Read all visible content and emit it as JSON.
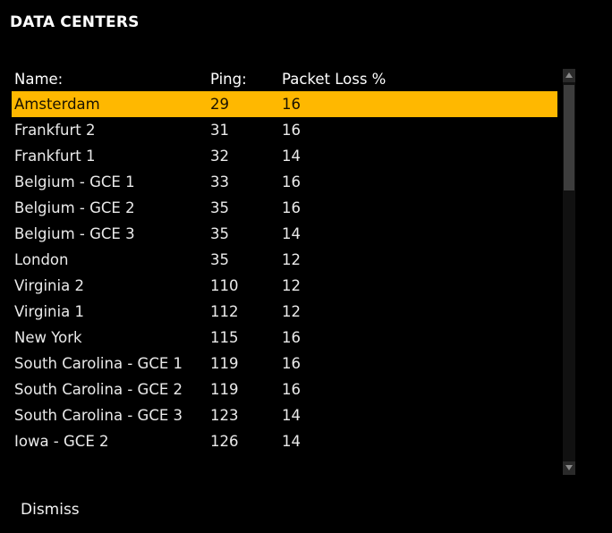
{
  "title": "DATA CENTERS",
  "columns": {
    "name": "Name:",
    "ping": "Ping:",
    "loss": "Packet Loss %"
  },
  "rows": [
    {
      "name": "Amsterdam",
      "ping": "29",
      "loss": "16",
      "selected": true
    },
    {
      "name": "Frankfurt 2",
      "ping": "31",
      "loss": "16"
    },
    {
      "name": "Frankfurt 1",
      "ping": "32",
      "loss": "14"
    },
    {
      "name": "Belgium - GCE 1",
      "ping": "33",
      "loss": "16"
    },
    {
      "name": "Belgium - GCE 2",
      "ping": "35",
      "loss": "16"
    },
    {
      "name": "Belgium - GCE 3",
      "ping": "35",
      "loss": "14"
    },
    {
      "name": "London",
      "ping": "35",
      "loss": "12"
    },
    {
      "name": "Virginia 2",
      "ping": "110",
      "loss": "12"
    },
    {
      "name": "Virginia 1",
      "ping": "112",
      "loss": "12"
    },
    {
      "name": "New York",
      "ping": "115",
      "loss": "16"
    },
    {
      "name": "South Carolina - GCE 1",
      "ping": "119",
      "loss": "16"
    },
    {
      "name": "South Carolina - GCE 2",
      "ping": "119",
      "loss": "16"
    },
    {
      "name": "South Carolina - GCE 3",
      "ping": "123",
      "loss": "14"
    },
    {
      "name": "Iowa - GCE 2",
      "ping": "126",
      "loss": "14"
    }
  ],
  "dismiss_label": "Dismiss",
  "colors": {
    "selection": "#ffb800",
    "background": "#000000"
  },
  "icons": {
    "scroll_up": "triangle-up-icon",
    "scroll_down": "triangle-down-icon"
  }
}
